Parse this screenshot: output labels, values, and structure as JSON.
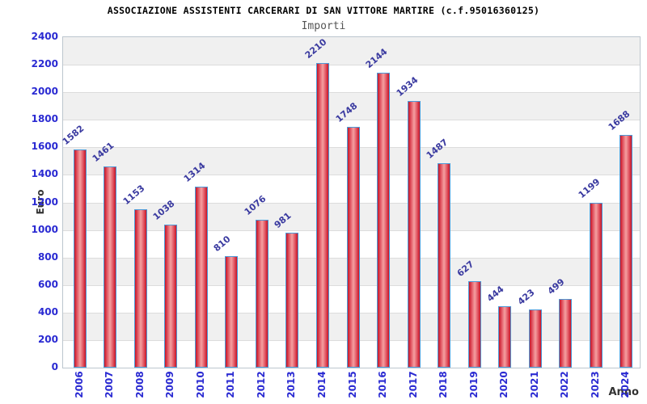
{
  "title": "ASSOCIAZIONE ASSISTENTI CARCERARI DI SAN VITTORE MARTIRE (c.f.95016360125)",
  "subtitle": "Importi",
  "chart_data": {
    "type": "bar",
    "title": "ASSOCIAZIONE ASSISTENTI CARCERARI DI SAN VITTORE MARTIRE (c.f.95016360125)",
    "subtitle": "Importi",
    "xlabel": "Anno",
    "ylabel": "Euro",
    "categories": [
      "2006",
      "2007",
      "2008",
      "2009",
      "2010",
      "2011",
      "2012",
      "2013",
      "2014",
      "2015",
      "2016",
      "2017",
      "2018",
      "2019",
      "2020",
      "2021",
      "2022",
      "2023",
      "2024"
    ],
    "values": [
      1582,
      1461,
      1153,
      1038,
      1314,
      810,
      1076,
      981,
      2210,
      1748,
      2144,
      1934,
      1487,
      627,
      444,
      423,
      499,
      1199,
      1688
    ],
    "ylim": [
      0,
      2400
    ],
    "y_ticks": [
      0,
      200,
      400,
      600,
      800,
      1000,
      1200,
      1400,
      1600,
      1800,
      2000,
      2200,
      2400
    ],
    "grid": true,
    "legend": "none",
    "colors": {
      "bar_edge": "#c81426",
      "bar_center": "#f5a0a0",
      "bar_border": "#4d9ad8",
      "axis_tick_label": "#2a2ad2",
      "value_label": "#3a3aa0",
      "band_gray": "#f0f0f0",
      "grid_line": "#dcdcdc",
      "title_color": "#000000",
      "subtitle_color": "#555555",
      "axis_name_color": "#333333"
    }
  }
}
